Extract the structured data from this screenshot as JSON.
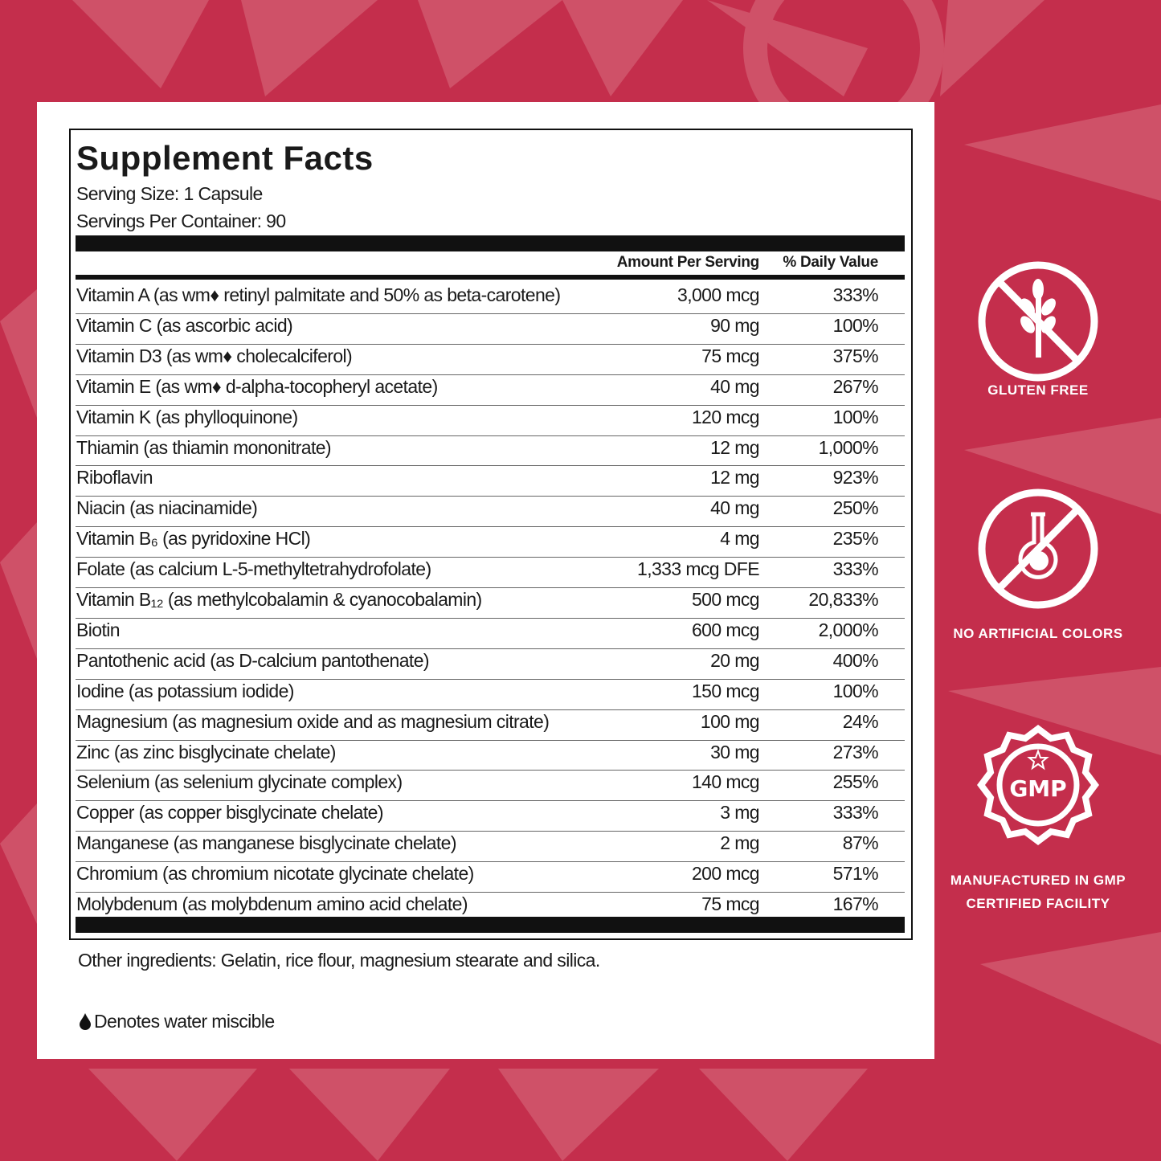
{
  "panel": {
    "title": "Supplement Facts",
    "serving_size": "Serving Size: 1 Capsule",
    "servings_per_container": "Servings Per Container: 90",
    "columns": [
      "Amount Per Serving",
      "% Daily Value"
    ],
    "rows": [
      [
        "Vitamin A (as wm♦ retinyl palmitate and 50% as beta-carotene)",
        "3,000 mcg",
        "333%"
      ],
      [
        "Vitamin C (as ascorbic acid)",
        "90 mg",
        "100%"
      ],
      [
        "Vitamin D3 (as wm♦ cholecalciferol)",
        "75 mcg",
        "375%"
      ],
      [
        "Vitamin E (as wm♦ d-alpha-tocopheryl acetate)",
        "40 mg",
        "267%"
      ],
      [
        "Vitamin K (as phylloquinone)",
        "120 mcg",
        "100%"
      ],
      [
        "Thiamin (as thiamin mononitrate)",
        "12 mg",
        "1,000%"
      ],
      [
        "Riboflavin",
        "12 mg",
        "923%"
      ],
      [
        "Niacin (as niacinamide)",
        "40 mg",
        "250%"
      ],
      [
        "Vitamin B₆ (as pyridoxine HCl)",
        "4 mg",
        "235%"
      ],
      [
        "Folate (as calcium L-5-methyltetrahydrofolate)",
        "1,333 mcg DFE",
        "333%"
      ],
      [
        "Vitamin B₁₂ (as methylcobalamin & cyanocobalamin)",
        "500 mcg",
        "20,833%"
      ],
      [
        "Biotin",
        "600 mcg",
        "2,000%"
      ],
      [
        "Pantothenic acid (as D-calcium pantothenate)",
        "20 mg",
        "400%"
      ],
      [
        "Iodine (as potassium iodide)",
        "150 mcg",
        "100%"
      ],
      [
        "Magnesium (as magnesium oxide and as magnesium citrate)",
        "100 mg",
        "24%"
      ],
      [
        "Zinc (as zinc bisglycinate chelate)",
        "30 mg",
        "273%"
      ],
      [
        "Selenium (as selenium glycinate complex)",
        "140 mcg",
        "255%"
      ],
      [
        "Copper (as copper bisglycinate chelate)",
        "3 mg",
        "333%"
      ],
      [
        "Manganese (as manganese bisglycinate chelate)",
        "2 mg",
        "87%"
      ],
      [
        "Chromium (as chromium nicotate glycinate chelate)",
        "200 mcg",
        "571%"
      ],
      [
        "Molybdenum (as molybdenum amino acid chelate)",
        "75 mcg",
        "167%"
      ]
    ],
    "other_ingredients": "Other ingredients: Gelatin, rice flour, magnesium stearate and silica.",
    "footnote": "Denotes water miscible"
  },
  "badges": [
    {
      "label": [
        "GLUTEN FREE"
      ]
    },
    {
      "label": [
        "NO ARTIFICIAL COLORS"
      ]
    },
    {
      "icon_text": "GMP",
      "label": [
        "MANUFACTURED IN GMP",
        "CERTIFIED FACILITY"
      ]
    }
  ]
}
